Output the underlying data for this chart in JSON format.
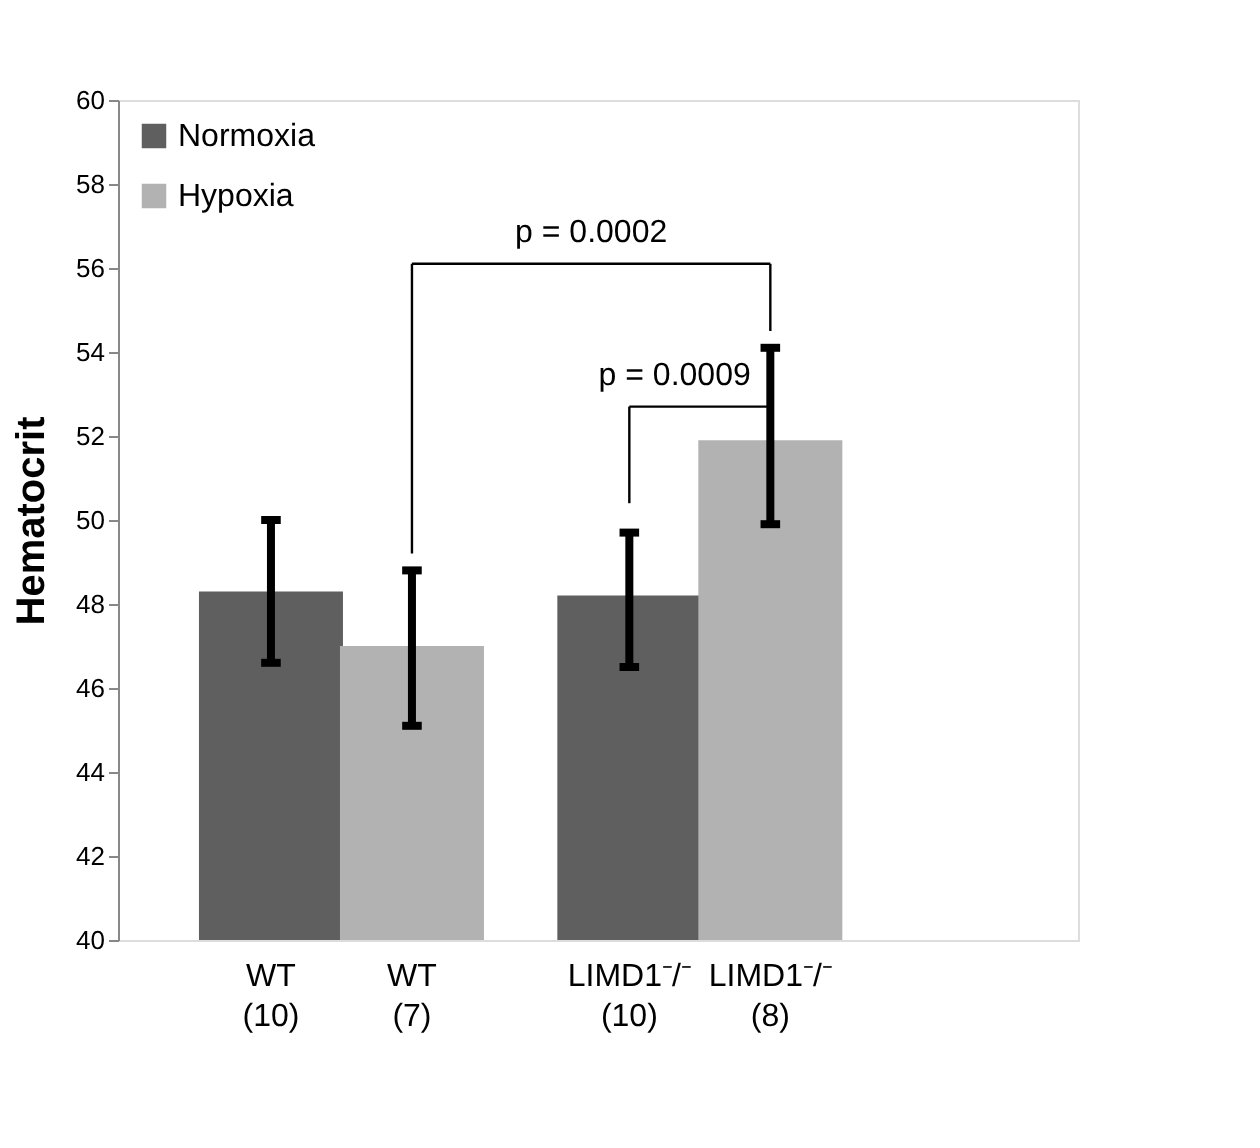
{
  "chart_data": {
    "type": "bar",
    "ylabel": "Hematocrit",
    "categories": [
      "WT\n(10)",
      "WT\n(7)",
      "LIMD1⁻/⁻\n(10)",
      "LIMD1⁻/⁻\n(8)"
    ],
    "series": [
      {
        "name": "Normoxia",
        "color": "#5f5f5f",
        "values": [
          48.3,
          null,
          48.2,
          null
        ],
        "errors": [
          [
            46.6,
            50.0
          ],
          null,
          [
            46.5,
            49.7
          ],
          null
        ]
      },
      {
        "name": "Hypoxia",
        "color": "#b2b2b2",
        "values": [
          null,
          47.0,
          null,
          51.9
        ],
        "errors": [
          null,
          [
            45.1,
            48.8
          ],
          null,
          [
            49.9,
            54.1
          ]
        ]
      }
    ],
    "ylim": [
      40,
      60
    ],
    "yticks": [
      40,
      42,
      44,
      46,
      48,
      50,
      52,
      54,
      56,
      58,
      60
    ],
    "annotations": [
      "p = 0.0002",
      "p = 0.0009"
    ],
    "legend": "top left",
    "grid": false
  }
}
